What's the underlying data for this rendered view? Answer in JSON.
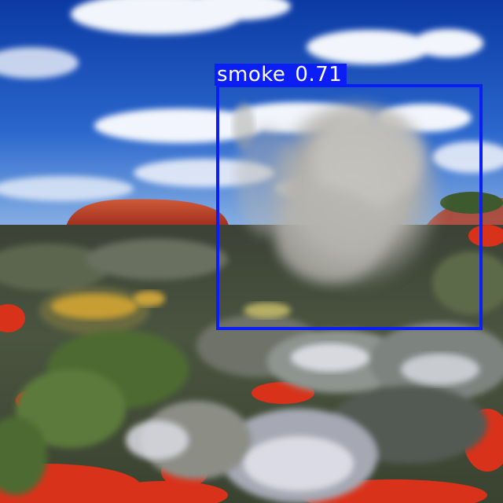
{
  "scene": {
    "description_tag": "desert-landscape-with-smoke",
    "palette": {
      "sky_top": "#0d3fa8",
      "sky_mid": "#2a6ad0",
      "sky_horizon": "#8fb6e6",
      "cloud": "#f2f5fb",
      "rock": "#c2422a",
      "rock_shade": "#8e2a1a",
      "soil": "#d9321a",
      "shrub_dark": "#3a4a2e",
      "shrub_green": "#5f7a3a",
      "shrub_grey": "#9aa0a0",
      "flower_white": "#e6e6ee",
      "flower_yellow": "#e2b23a",
      "smoke": "#b9b8b4"
    }
  },
  "detection": {
    "class_name": "smoke",
    "confidence": "0.71",
    "box_color": "#0a1ef5",
    "label_text_color": "#ffffff"
  }
}
